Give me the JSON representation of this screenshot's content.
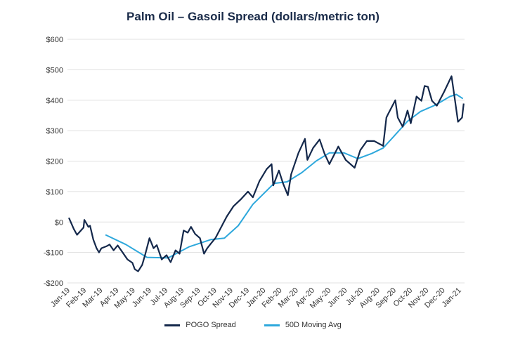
{
  "chart_data": {
    "type": "line",
    "title": "Palm Oil – Gasoil Spread (dollars/metric ton)",
    "xlabel": "",
    "ylabel": "",
    "ylim": [
      -200,
      600
    ],
    "yticks": [
      600,
      500,
      400,
      300,
      200,
      100,
      0,
      -100,
      -200
    ],
    "ytick_labels": [
      "$600",
      "$500",
      "$400",
      "$300",
      "$200",
      "$100",
      "$0",
      "-$100",
      "-$200"
    ],
    "x_unit": "months since Jan-19",
    "xlim": [
      0,
      24.3
    ],
    "xtick_labels": [
      "Jan-19",
      "Feb-19",
      "Mar-19",
      "Apr-19",
      "May-19",
      "Jun-19",
      "Jul-19",
      "Aug-19",
      "Sep-19",
      "Oct-19",
      "Nov-19",
      "Dec-19",
      "Jan-20",
      "Feb-20",
      "Mar-20",
      "Apr-20",
      "May-20",
      "Jun-20",
      "Jul-20",
      "Aug-20",
      "Sep-20",
      "Oct-20",
      "Nov-20",
      "Dec-20",
      "Jan-21"
    ],
    "grid": true,
    "legend_position": "bottom",
    "series": [
      {
        "name": "POGO Spread",
        "color": "#14284b",
        "x": [
          0,
          0.3,
          0.5,
          0.9,
          0.95,
          1.2,
          1.3,
          1.5,
          1.7,
          1.85,
          2.0,
          2.3,
          2.5,
          2.75,
          3.0,
          3.3,
          3.6,
          3.9,
          4.05,
          4.25,
          4.5,
          4.7,
          4.95,
          5.2,
          5.4,
          5.7,
          6.0,
          6.25,
          6.55,
          6.8,
          7.05,
          7.3,
          7.5,
          7.75,
          8.05,
          8.3,
          8.5,
          8.75,
          9.0,
          9.7,
          10.1,
          10.55,
          11.0,
          11.3,
          11.7,
          12.15,
          12.45,
          12.55,
          12.9,
          13.15,
          13.45,
          13.65,
          14.1,
          14.5,
          14.65,
          15.0,
          15.4,
          15.7,
          16.0,
          16.55,
          17.0,
          17.55,
          17.9,
          18.3,
          18.75,
          19.3,
          19.5,
          19.6,
          20.05,
          20.2,
          20.5,
          20.8,
          21.0,
          21.35,
          21.65,
          21.85,
          22.05,
          22.3,
          22.6,
          23.05,
          23.5,
          23.7,
          23.9,
          24.15,
          24.25
        ],
        "values": [
          14,
          -23,
          -42,
          -18,
          7,
          -16,
          -12,
          -58,
          -86,
          -100,
          -86,
          -80,
          -74,
          -93,
          -77,
          -100,
          -123,
          -134,
          -155,
          -162,
          -141,
          -104,
          -53,
          -86,
          -76,
          -123,
          -109,
          -132,
          -93,
          -104,
          -28,
          -35,
          -16,
          -39,
          -53,
          -104,
          -86,
          -69,
          -53,
          18,
          51,
          74,
          100,
          81,
          134,
          174,
          190,
          120,
          169,
          127,
          88,
          157,
          227,
          273,
          204,
          243,
          271,
          225,
          190,
          248,
          204,
          178,
          236,
          266,
          266,
          250,
          343,
          354,
          400,
          343,
          313,
          366,
          324,
          412,
          398,
          447,
          444,
          398,
          382,
          428,
          479,
          405,
          329,
          343,
          389
        ]
      },
      {
        "name": "50D Moving Avg",
        "color": "#2ea8dc",
        "x": [
          2.25,
          3.5,
          4.8,
          6.1,
          7.4,
          8.7,
          9.55,
          10.4,
          11.3,
          12.6,
          13.4,
          14.3,
          15.2,
          16.0,
          16.9,
          17.75,
          18.6,
          19.3,
          19.9,
          20.8,
          21.6,
          22.5,
          23.4,
          23.8,
          24.2
        ],
        "values": [
          -42,
          -74,
          -116,
          -118,
          -81,
          -58,
          -53,
          -12,
          58,
          127,
          132,
          162,
          201,
          227,
          227,
          208,
          225,
          243,
          278,
          331,
          363,
          384,
          412,
          419,
          405
        ]
      }
    ]
  }
}
